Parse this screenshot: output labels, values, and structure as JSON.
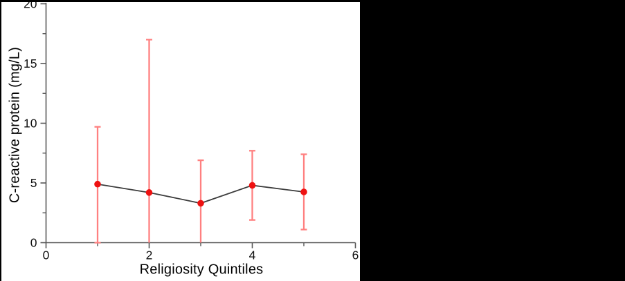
{
  "page": {
    "background": "#ffffff",
    "right_panel_color": "#000000",
    "border_color": "#000000"
  },
  "chart_data": {
    "type": "line",
    "title": "",
    "xlabel": "Religiosity Quintiles",
    "ylabel": "C-reactive protein (mg/L)",
    "x": [
      1,
      2,
      3,
      4,
      5
    ],
    "y": [
      4.9,
      4.2,
      3.3,
      4.8,
      4.25
    ],
    "error_low": [
      0,
      0,
      0,
      1.9,
      1.1
    ],
    "error_high": [
      9.7,
      17.0,
      6.9,
      7.7,
      7.4
    ],
    "lower_cap_visible": [
      true,
      false,
      false,
      true,
      true
    ],
    "xlim": [
      0,
      6
    ],
    "ylim": [
      0,
      20
    ],
    "x_major_ticks": [
      0,
      2,
      4,
      6
    ],
    "x_tick_labels": [
      "0",
      "2",
      "4",
      "6"
    ],
    "x_minor_ticks": [
      1,
      3,
      5
    ],
    "y_major_ticks": [
      0,
      5,
      10,
      15,
      20
    ],
    "y_tick_labels": [
      "0",
      "5",
      "10",
      "15",
      "20"
    ],
    "y_minor_ticks": [
      2.5,
      7.5,
      12.5,
      17.5
    ],
    "grid": false,
    "legend": null,
    "marker_color": "#ee1111",
    "error_bar_color": "#ff8080",
    "line_color": "#3d3d3d",
    "axis_color": "#555555",
    "tick_label_color": "#111111"
  }
}
